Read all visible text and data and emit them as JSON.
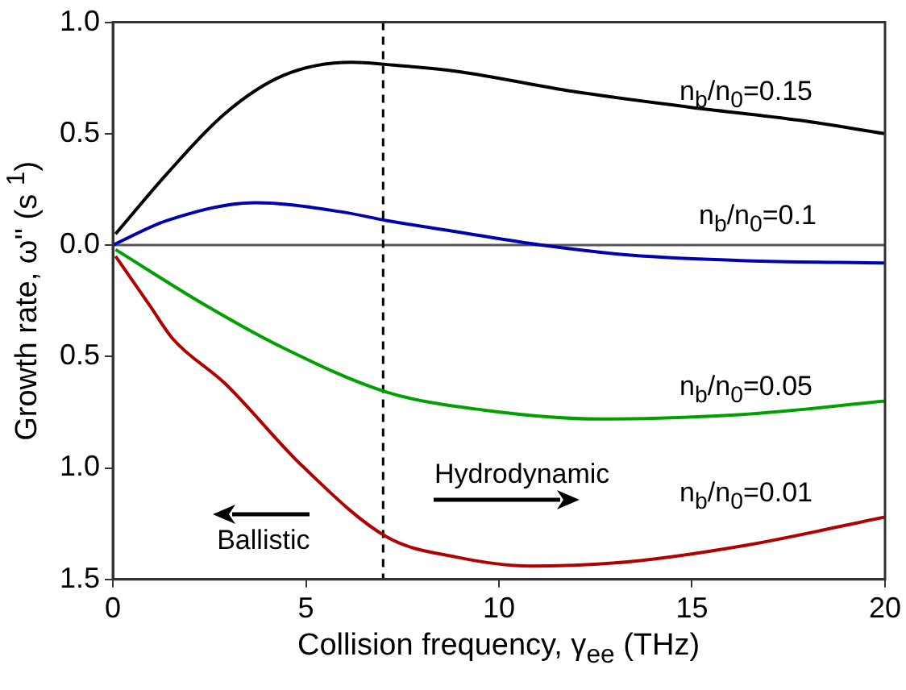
{
  "chart_data": {
    "type": "line",
    "xlabel": "Collision frequency, γ$_{ee}$ (THz)",
    "ylabel": "Growth rate, ω'' (s $^{1}$)",
    "xlim": [
      0,
      20
    ],
    "xticks": [
      0,
      5,
      10,
      15,
      20
    ],
    "ylim": [
      -1.5,
      1.0
    ],
    "yticks": [
      {
        "value": -1.5,
        "label": "1.5"
      },
      {
        "value": -1.0,
        "label": "1.0"
      },
      {
        "value": -0.5,
        "label": "0.5"
      },
      {
        "value": 0,
        "label": "0.0"
      },
      0.5,
      {
        "value": 1,
        "label": "1.0"
      }
    ],
    "grid": false,
    "legend": false,
    "marker": "none",
    "line_style": "solid",
    "series": [
      {
        "color": "#000000",
        "x": [
          0.07,
          1.4,
          2.9,
          4.4,
          6.2,
          7.1,
          8.9,
          11.9,
          14.9,
          17.8,
          20
        ],
        "values": [
          0.05,
          0.32,
          0.59,
          0.76,
          0.82,
          0.81,
          0.78,
          0.69,
          0.62,
          0.56,
          0.5
        ]
      },
      {
        "color": "#0000b0",
        "x": [
          0,
          1.4,
          3.7,
          5.9,
          7.1,
          8.9,
          11.1,
          13.4,
          16.4,
          20
        ],
        "values": [
          0,
          0.11,
          0.19,
          0.15,
          0.11,
          0.06,
          0,
          -0.045,
          -0.07,
          -0.08
        ]
      },
      {
        "color": "#00a000",
        "x": [
          0.07,
          2.4,
          4.4,
          7.1,
          9.6,
          12.6,
          16.3,
          20
        ],
        "values": [
          -0.02,
          -0.27,
          -0.46,
          -0.66,
          -0.74,
          -0.78,
          -0.76,
          -0.7
        ]
      },
      {
        "color": "#b00000",
        "x": [
          0.07,
          0.95,
          1.55,
          2.9,
          4.9,
          7.1,
          8.9,
          10.8,
          13.4,
          16.3,
          20
        ],
        "values": [
          -0.05,
          -0.27,
          -0.42,
          -0.62,
          -0.99,
          -1.31,
          -1.4,
          -1.44,
          -1.42,
          -1.35,
          -1.22
        ]
      }
    ],
    "ref_lines": [
      {
        "axis": "y",
        "value": 0,
        "color": "#555555",
        "line_style": "solid"
      },
      {
        "axis": "x",
        "value": 7,
        "color": "#000000",
        "line_style": "dashed"
      }
    ],
    "annotations": [
      "n$_{b}$/n$_{0}$=0.15",
      "n$_{b}$/n$_{0}$=0.1",
      "n$_{b}$/n$_{0}$=0.05",
      "n$_{b}$/n$_{0}$=0.01",
      "Hydrodynamic",
      "Ballistic"
    ]
  }
}
